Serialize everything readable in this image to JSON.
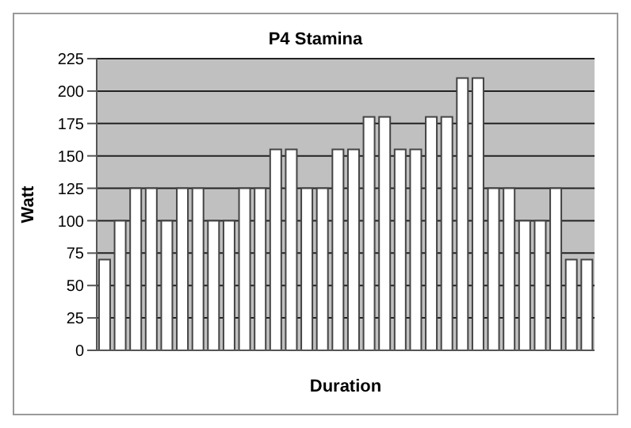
{
  "chart_data": {
    "type": "bar",
    "title": "P4 Stamina",
    "xlabel": "Duration",
    "ylabel": "Watt",
    "categories": [
      null,
      null,
      null,
      null,
      null,
      null,
      null,
      null,
      null,
      null,
      null,
      null,
      null,
      null,
      null,
      null,
      null,
      null,
      null,
      null,
      null,
      null,
      null,
      null,
      null,
      null,
      null,
      null,
      null,
      null,
      null,
      null
    ],
    "values": [
      70,
      100,
      125,
      125,
      100,
      125,
      125,
      100,
      100,
      125,
      125,
      155,
      155,
      125,
      125,
      155,
      155,
      180,
      180,
      155,
      155,
      180,
      180,
      210,
      210,
      125,
      125,
      100,
      100,
      125,
      70,
      70
    ],
    "color": "#ffffff",
    "ylim": [
      0,
      225
    ],
    "yticks": [
      0,
      25,
      50,
      75,
      100,
      125,
      150,
      175,
      200,
      225
    ],
    "grid": "y"
  }
}
